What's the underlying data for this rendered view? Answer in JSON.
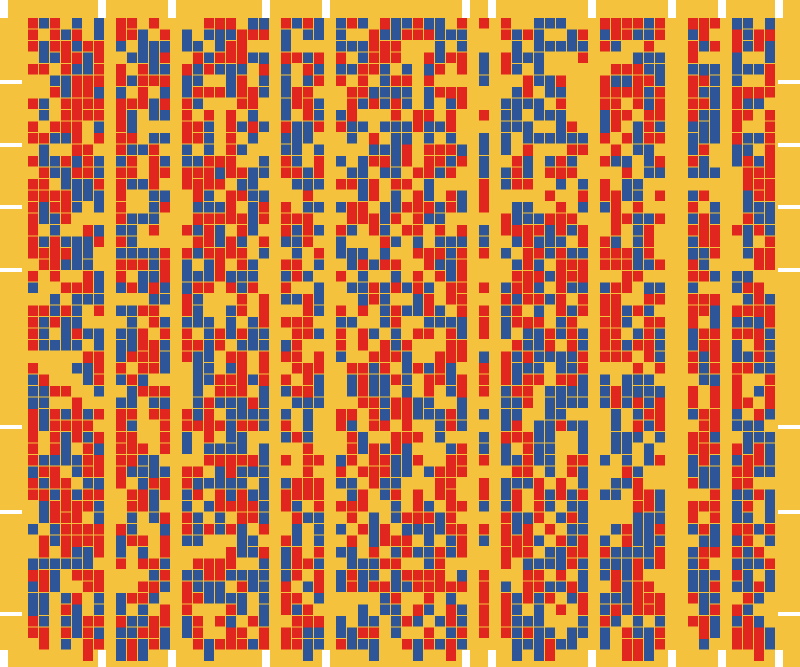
{
  "colors": [
    "#f4c23c",
    "#e1251f",
    "#2d5597",
    "#ffffff"
  ]
}
